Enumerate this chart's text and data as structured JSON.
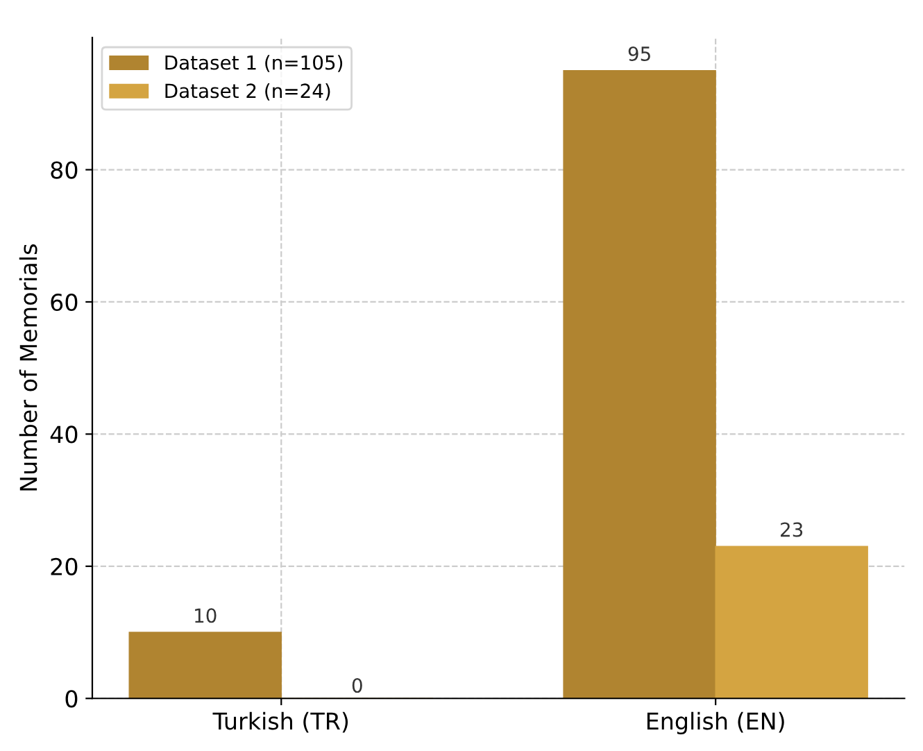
{
  "chart_data": {
    "type": "bar",
    "ylabel": "Number of Memorials",
    "categories": [
      "Turkish (TR)",
      "English (EN)"
    ],
    "series": [
      {
        "name": "Dataset 1 (n=105)",
        "color": "#b08430",
        "values": [
          10,
          95
        ]
      },
      {
        "name": "Dataset 2 (n=24)",
        "color": "#d4a441",
        "values": [
          0,
          23
        ]
      }
    ],
    "ylim": [
      0,
      100
    ],
    "yticks": [
      0,
      20,
      40,
      60,
      80
    ],
    "grid": true,
    "legend": "top left",
    "data_labels": true
  }
}
